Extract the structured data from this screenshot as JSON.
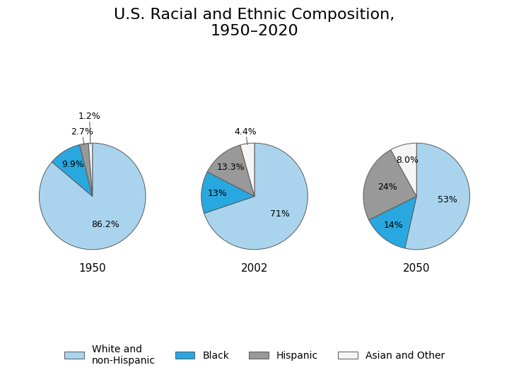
{
  "chart_data": {
    "type": "pie",
    "title": "U.S. Racial and Ethnic Composition,\n1950–2020",
    "categories": [
      "White and\nnon-Hispanic",
      "Black",
      "Hispanic",
      "Asian and Other"
    ],
    "colors": [
      "#aad4ee",
      "#29a8e0",
      "#999999",
      "#f5f5f5"
    ],
    "series": [
      {
        "name": "1950",
        "values": [
          86.2,
          9.9,
          2.7,
          1.2
        ],
        "value_labels": [
          "86.2%",
          "9.9%",
          "2.7%",
          "1.2%"
        ]
      },
      {
        "name": "2002",
        "values": [
          71.0,
          13.0,
          13.3,
          4.4
        ],
        "value_labels": [
          "71%",
          "13%",
          "13.3%",
          "4.4%"
        ]
      },
      {
        "name": "2050",
        "values": [
          53.0,
          14.0,
          24.0,
          8.0
        ],
        "value_labels": [
          "53%",
          "14%",
          "24%",
          "8.0%"
        ]
      }
    ],
    "data_labels": true,
    "legend": "lower center"
  }
}
